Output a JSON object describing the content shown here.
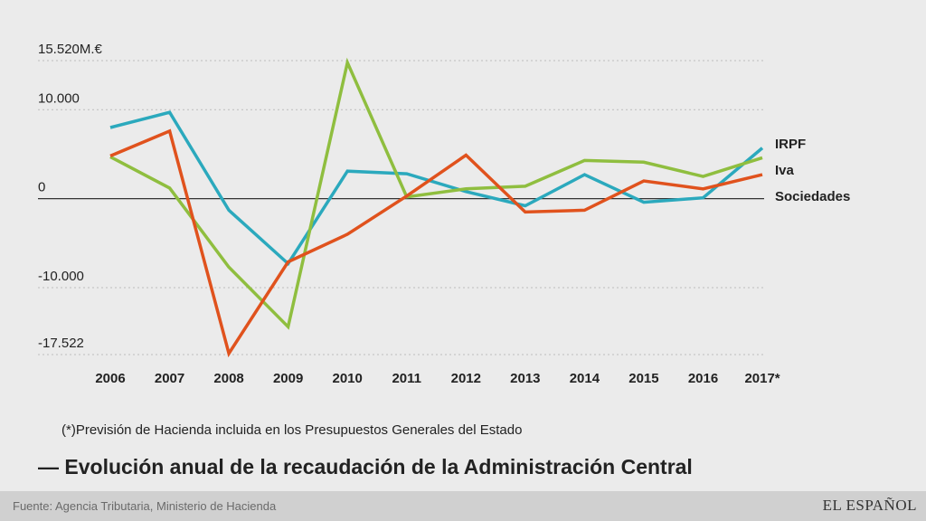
{
  "chart_data": {
    "type": "line",
    "title": "— Evolución anual de la recaudación de la Administración Central",
    "note": "(*)Previsión de Hacienda incluida en los Presupuestos Generales del Estado",
    "categories": [
      "2006",
      "2007",
      "2008",
      "2009",
      "2010",
      "2011",
      "2012",
      "2013",
      "2014",
      "2015",
      "2016",
      "2017*"
    ],
    "ylim": [
      -17522,
      15520
    ],
    "yticks": [
      {
        "value": 15520,
        "label": "15.520M.€"
      },
      {
        "value": 10000,
        "label": "10.000"
      },
      {
        "value": 0,
        "label": "0"
      },
      {
        "value": -10000,
        "label": "-10.000"
      },
      {
        "value": -17522,
        "label": "-17.522"
      }
    ],
    "grid": "dotted horizontal",
    "legend": "right, at line ends",
    "series": [
      {
        "name": "IRPF",
        "color": "#2ba9bd",
        "values": [
          8000,
          9700,
          -1300,
          -7300,
          3100,
          2800,
          800,
          -800,
          2700,
          -400,
          100,
          5700
        ]
      },
      {
        "name": "Iva",
        "color": "#8fbe3f",
        "values": [
          4700,
          1200,
          -7700,
          -14400,
          15300,
          200,
          1100,
          1400,
          4300,
          4100,
          2500,
          4600
        ]
      },
      {
        "name": "Sociedades",
        "color": "#e0521d",
        "values": [
          4800,
          7600,
          -17400,
          -7100,
          -4000,
          300,
          4900,
          -1500,
          -1300,
          2000,
          1100,
          2700
        ]
      }
    ]
  },
  "footer": {
    "source": "Fuente: Agencia Tributaria, Ministerio de Hacienda",
    "brand": "EL ESPAÑOL"
  }
}
